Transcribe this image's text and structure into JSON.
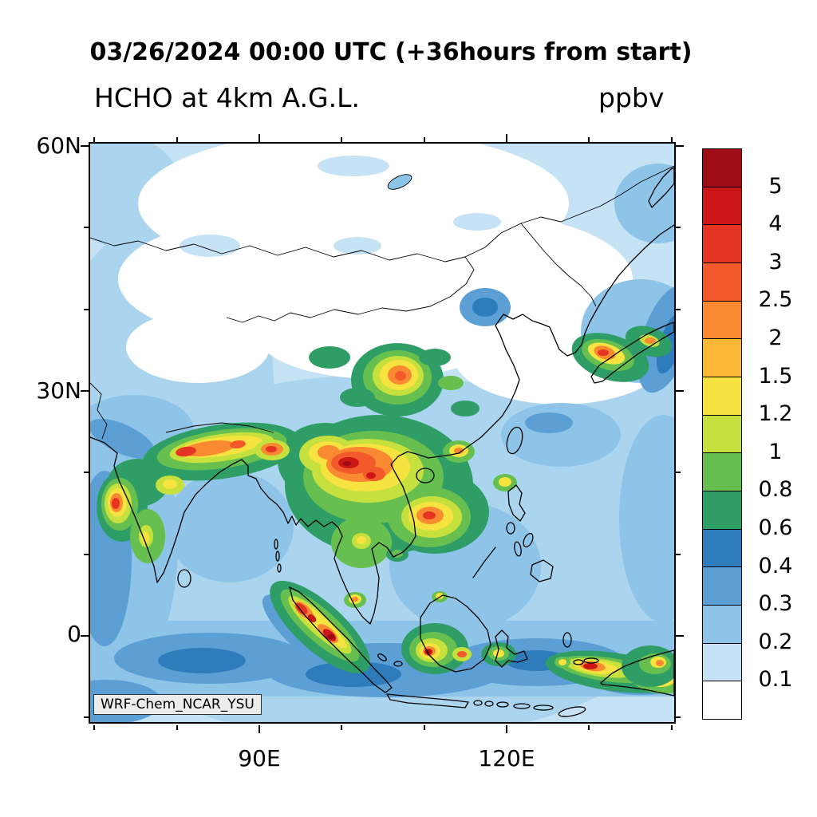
{
  "header": {
    "title": "03/26/2024 00:00 UTC (+36hours from start)",
    "variable_label": "HCHO at 4km A.G.L.",
    "units_label": "ppbv"
  },
  "map": {
    "watermark": "WRF-Chem_NCAR_YSU",
    "lat_tick_labels": [
      "60N",
      "30N",
      "0"
    ],
    "lon_tick_labels": [
      "90E",
      "120E"
    ]
  },
  "colorbar": {
    "labels_top_to_bottom": [
      "5",
      "4",
      "3",
      "2.5",
      "2",
      "1.5",
      "1.2",
      "1",
      "0.8",
      "0.6",
      "0.4",
      "0.3",
      "0.2",
      "0.1"
    ],
    "colors_top_to_bottom": [
      "#9e0d14",
      "#cc1618",
      "#e63423",
      "#f2592b",
      "#f98a31",
      "#fcb938",
      "#f6e33f",
      "#c6e03e",
      "#67bf4f",
      "#2f9e66",
      "#2f7cbc",
      "#5b9fd4",
      "#8ec4e8",
      "#c6e2f5",
      "#ffffff"
    ]
  },
  "chart_data": {
    "type": "heatmap",
    "title": "HCHO at 4km A.G.L.",
    "units": "ppbv",
    "timestamp": "03/26/2024 00:00 UTC (+36hours from start)",
    "model_label": "WRF-Chem_NCAR_YSU",
    "contour_levels": [
      0.1,
      0.2,
      0.3,
      0.4,
      0.6,
      0.8,
      1,
      1.2,
      1.5,
      2,
      2.5,
      3,
      4,
      5
    ],
    "x_axis": {
      "label_type": "longitude",
      "tick_labels": [
        "90E",
        "120E"
      ]
    },
    "y_axis": {
      "label_type": "latitude",
      "tick_labels": [
        "60N",
        "30N",
        "0"
      ]
    },
    "legend_position": "right"
  }
}
